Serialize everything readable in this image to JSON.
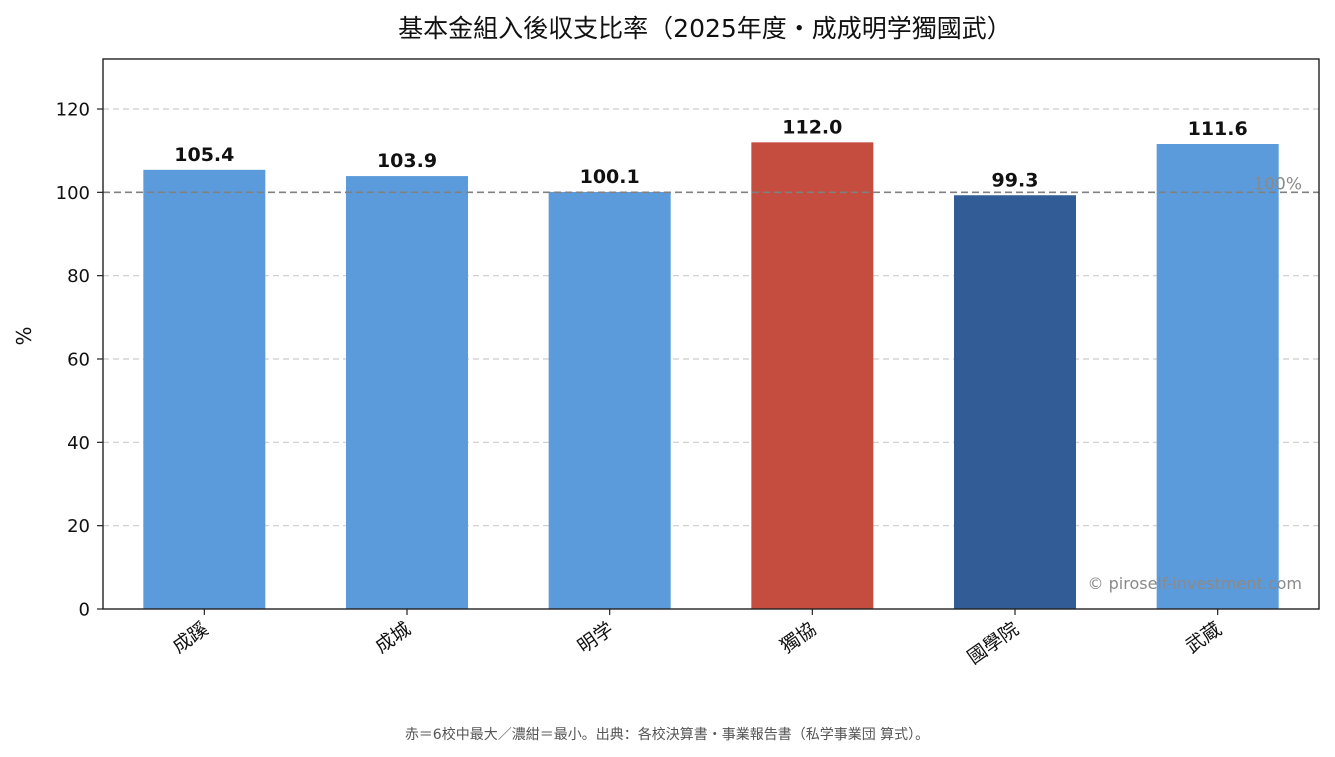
{
  "chart_data": {
    "type": "bar",
    "title": "基本金組入後収支比率（2025年度・成成明学獨國武）",
    "ylabel": "%",
    "xlabel": "",
    "categories": [
      "成蹊",
      "成城",
      "明学",
      "獨協",
      "國學院",
      "武蔵"
    ],
    "values": [
      105.4,
      103.9,
      100.1,
      112.0,
      99.3,
      111.6
    ],
    "value_labels": [
      "105.4",
      "103.9",
      "100.1",
      "112.0",
      "99.3",
      "111.6"
    ],
    "bar_colors": [
      "#5b9bdc",
      "#5b9bdc",
      "#5b9bdc",
      "#c44d3f",
      "#315c95",
      "#5b9bdc"
    ],
    "ylim": [
      0,
      132
    ],
    "yticks": [
      0,
      20,
      40,
      60,
      80,
      100,
      120
    ],
    "grid": true,
    "reference_line": {
      "value": 100,
      "label": "100%",
      "color": "#808080"
    },
    "watermark": "© piroself-investment.com",
    "note": "赤＝6校中最大／濃紺＝最小。出典：各校決算書・事業報告書（私学事業団 算式）。"
  }
}
